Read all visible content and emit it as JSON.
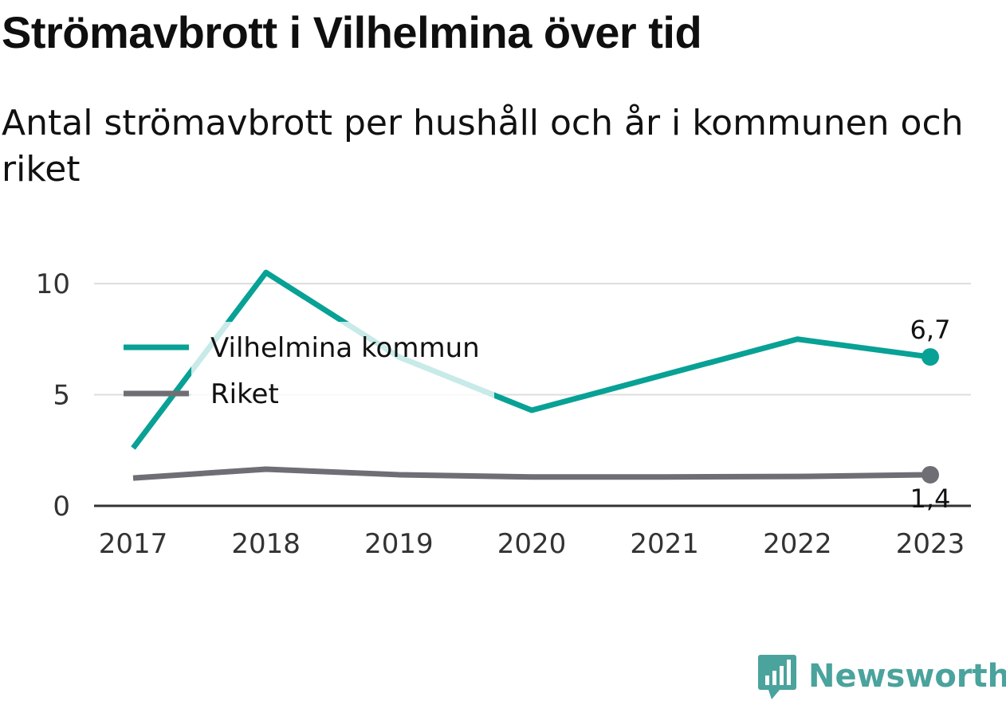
{
  "title": "Strömavbrott i Vilhelmina över tid",
  "subtitle": "Antal strömavbrott per hushåll och år i kommunen och riket",
  "brand": {
    "name": "Newsworthy",
    "icon": "newsworthy-logo-icon",
    "color": "#4aa39c"
  },
  "chart_data": {
    "type": "line",
    "title": "Strömavbrott i Vilhelmina över tid",
    "subtitle": "Antal strömavbrott per hushåll och år i kommunen och riket",
    "xlabel": "",
    "ylabel": "",
    "x": [
      "2017",
      "2018",
      "2019",
      "2020",
      "2021",
      "2022",
      "2023"
    ],
    "ylim": [
      0,
      10
    ],
    "yticks": [
      "0",
      "5",
      "10"
    ],
    "grid": true,
    "legend_position": "top-left",
    "series": [
      {
        "name": "Vilhelmina kommun",
        "color": "#08a195",
        "values": [
          2.6,
          10.5,
          6.7,
          4.3,
          5.9,
          7.5,
          6.7
        ],
        "end_label": "6,7"
      },
      {
        "name": "Riket",
        "color": "#6f6e75",
        "values": [
          1.25,
          1.65,
          1.4,
          1.3,
          1.3,
          1.32,
          1.4
        ],
        "end_label": "1,4"
      }
    ]
  }
}
